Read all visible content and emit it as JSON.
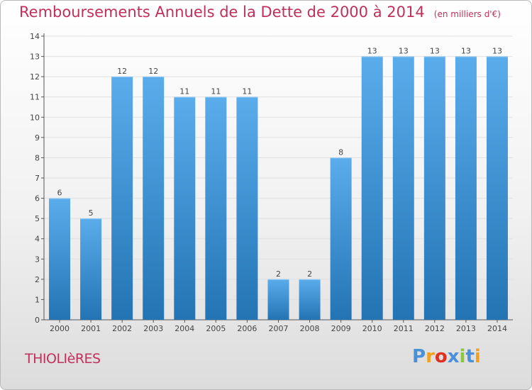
{
  "title": "Remboursements Annuels de la Dette de 2000 à 2014",
  "subtitle": "(en milliers d'€)",
  "commune": "THIOLIèRES",
  "logo": {
    "text": "Proxiti",
    "letter_colors": [
      "#4a90d9",
      "#f2a020",
      "#e03020",
      "#4a90d9",
      "#8cc63e",
      "#4a90d9",
      "#f2a020"
    ]
  },
  "colors": {
    "title": "#c0305a",
    "bar_light": "#5aaceb",
    "bar_dark": "#2474b4",
    "grid": "#e0e0e0"
  },
  "chart_data": {
    "type": "bar",
    "title": "Remboursements Annuels de la Dette de 2000 à 2014",
    "subtitle": "(en milliers d'€)",
    "categories": [
      "2000",
      "2001",
      "2002",
      "2003",
      "2004",
      "2005",
      "2006",
      "2007",
      "2008",
      "2009",
      "2010",
      "2011",
      "2012",
      "2013",
      "2014"
    ],
    "values": [
      6,
      5,
      12,
      12,
      11,
      11,
      11,
      2,
      2,
      8,
      13,
      13,
      13,
      13,
      13
    ],
    "data_labels": [
      "6",
      "5",
      "12",
      "12",
      "11",
      "11",
      "11",
      "2",
      "2",
      "8",
      "13",
      "13",
      "13",
      "13",
      "13"
    ],
    "yticks": [
      0,
      1,
      2,
      3,
      4,
      5,
      6,
      7,
      8,
      9,
      10,
      11,
      12,
      13,
      14
    ],
    "ylim": [
      0,
      14
    ],
    "grid": true
  }
}
